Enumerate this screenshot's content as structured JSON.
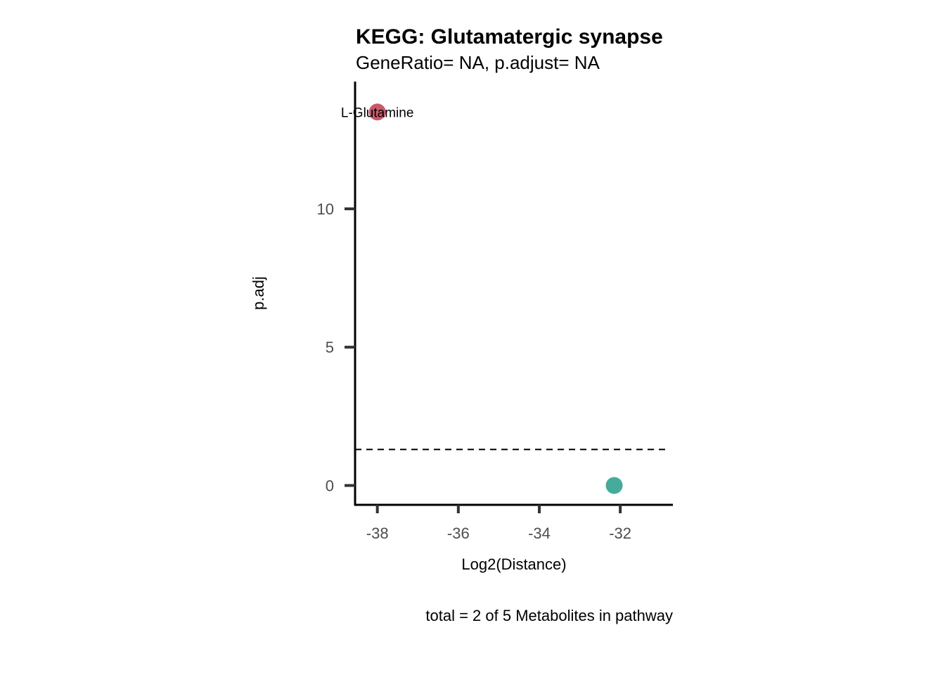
{
  "chart_data": {
    "type": "scatter",
    "title": "KEGG: Glutamatergic synapse",
    "subtitle": "GeneRatio= NA, p.adjust= NA",
    "xlabel": "Log2(Distance)",
    "ylabel": "p.adj",
    "caption": "total = 2 of 5 Metabolites in pathway",
    "xlim": [
      -38.55,
      -30.7
    ],
    "ylim": [
      -0.7,
      14.6
    ],
    "x_ticks": [
      -38,
      -36,
      -34,
      -32
    ],
    "y_ticks": [
      0,
      5,
      10
    ],
    "threshold_line": 1.3,
    "grid": false,
    "points": [
      {
        "x": -38.0,
        "y": 13.5,
        "color": "#c8596a",
        "label": "L-Glutamine"
      },
      {
        "x": -32.15,
        "y": 0.0,
        "color": "#45ab9c",
        "label": ""
      }
    ]
  }
}
